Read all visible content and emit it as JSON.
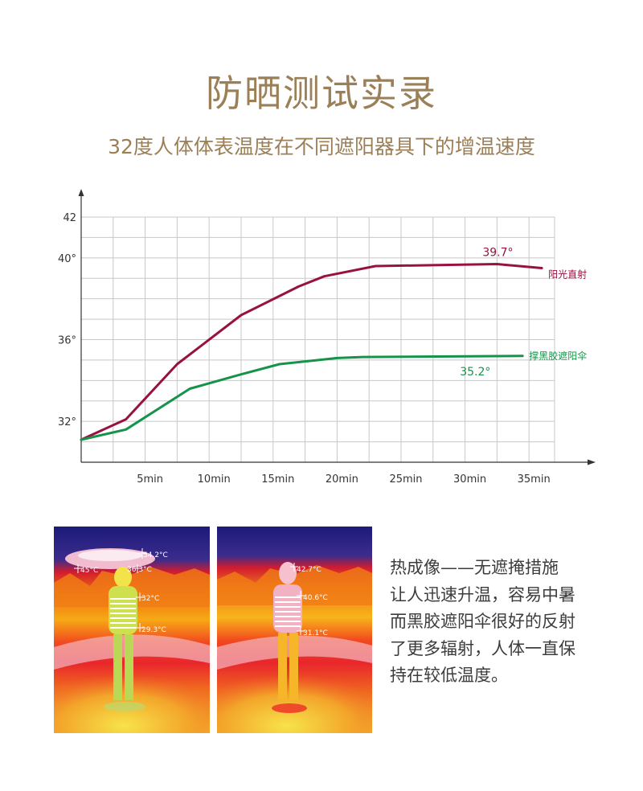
{
  "header": {
    "title": "防晒测试实录",
    "subtitle": "32度人体体表温度在不同遮阳器具下的增温速度"
  },
  "chart_data": {
    "type": "line",
    "title": "",
    "xlabel": "",
    "ylabel": "",
    "x_ticks": [
      "5min",
      "10min",
      "15min",
      "20min",
      "25min",
      "30min",
      "35min"
    ],
    "y_ticks": [
      "32°",
      "36°",
      "40°",
      "42"
    ],
    "ylim": [
      30,
      42
    ],
    "xlim": [
      0,
      37
    ],
    "grid": true,
    "series": [
      {
        "name": "阳光直射",
        "color": "#97123f",
        "x": [
          0,
          3.5,
          7.5,
          12.5,
          17,
          19,
          23,
          32.5,
          36
        ],
        "y": [
          31.1,
          32.1,
          34.8,
          37.2,
          38.6,
          39.1,
          39.6,
          39.7,
          39.5
        ],
        "annotation": "39.7°",
        "annotation_x": 32.5,
        "annotation_y": 39.7
      },
      {
        "name": "撑黑胶遮阳伞",
        "color": "#16934a",
        "x": [
          0,
          3.5,
          8.5,
          12.5,
          15.5,
          20,
          22,
          34.5
        ],
        "y": [
          31.1,
          31.6,
          33.6,
          34.3,
          34.8,
          35.1,
          35.15,
          35.2
        ],
        "annotation": "35.2°",
        "annotation_x": 34.5,
        "annotation_y": 35.2
      }
    ]
  },
  "thermal_images": {
    "left": {
      "labels": [
        "54.2°C",
        "45°C",
        "36.3°C",
        "32°C",
        "29.3°C"
      ]
    },
    "right": {
      "labels": [
        "42.7°C",
        "40.6°C",
        "31.1°C"
      ]
    }
  },
  "description": {
    "lines": [
      " 热成像——无遮掩措施",
      "让人迅速升温，容易中暑",
      "而黑胶遮阳伞很好的反射",
      "了更多辐射，人体一直保",
      "持在较低温度。"
    ]
  }
}
